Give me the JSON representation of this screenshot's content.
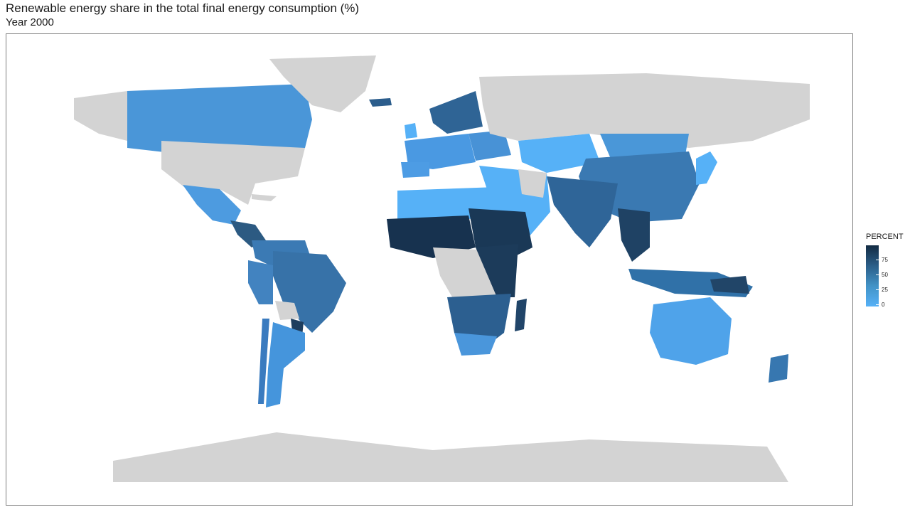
{
  "title": "Renewable energy share in the total final energy consumption (%)",
  "subtitle": "Year 2000",
  "legend": {
    "title": "PERCENT",
    "ticks": [
      "75",
      "50",
      "25",
      "0"
    ],
    "color_low": "#56b1f7",
    "color_high": "#132b43",
    "no_data_color": "#d3d3d3"
  }
}
